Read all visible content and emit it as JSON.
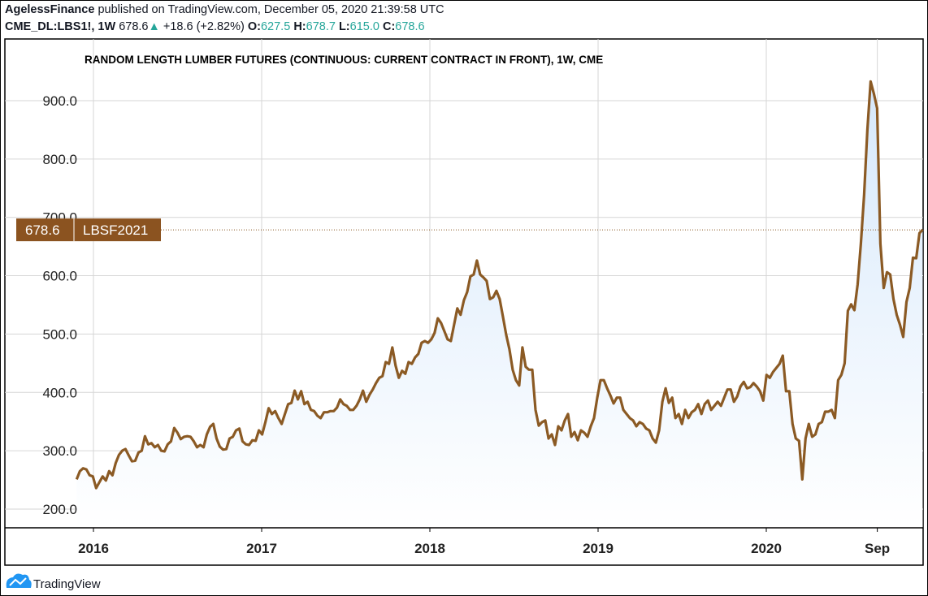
{
  "header": {
    "author": "AgelessFinance",
    "published": "published on TradingView.com, December 05, 2020 21:39:58 UTC",
    "symbol": "CME_DL:LBS1!, 1W",
    "last": "678.6",
    "change": "+18.6 (+2.82%)",
    "o_label": "O:",
    "o": "627.5",
    "h_label": "H:",
    "h": "678.7",
    "l_label": "L:",
    "l": "615.0",
    "c_label": "C:",
    "c": "678.6"
  },
  "footer": {
    "brand": "TradingView"
  },
  "colors": {
    "line": "#8b5a24",
    "fill_top": "#d6e8fb",
    "up": "#26a69a",
    "label_bg": "#8b5320"
  },
  "chart_data": {
    "type": "area",
    "title": "RANDOM LENGTH LUMBER FUTURES (CONTINUOUS: CURRENT CONTRACT IN FRONT), 1W, CME",
    "xlabel": "",
    "ylabel": "",
    "ylim": [
      200,
      930
    ],
    "xlim": [
      2015.9,
      2020.95
    ],
    "x_start": 2015.9,
    "x_end": 2020.93,
    "yticks": [
      "200.0",
      "300.0",
      "400.0",
      "500.0",
      "600.0",
      "700.0",
      "800.0",
      "900.0"
    ],
    "ytick_values": [
      200,
      300,
      400,
      500,
      600,
      700,
      800,
      900
    ],
    "xticks": [
      {
        "label": "2016",
        "x": 2016.0
      },
      {
        "label": "2017",
        "x": 2017.0
      },
      {
        "label": "2018",
        "x": 2018.0
      },
      {
        "label": "2019",
        "x": 2019.0
      },
      {
        "label": "2020",
        "x": 2020.0
      },
      {
        "label": "Sep",
        "x": 2020.66
      }
    ],
    "price_label": {
      "value": "678.6",
      "name": "LBSF2021",
      "y": 678.6
    },
    "grid": true,
    "values": [
      251,
      265,
      270,
      268,
      258,
      256,
      236,
      246,
      256,
      249,
      265,
      258,
      279,
      293,
      300,
      303,
      292,
      282,
      283,
      297,
      300,
      325,
      311,
      313,
      306,
      310,
      300,
      299,
      311,
      316,
      339,
      331,
      320,
      324,
      325,
      324,
      316,
      306,
      310,
      306,
      328,
      341,
      346,
      321,
      307,
      302,
      303,
      321,
      324,
      335,
      338,
      316,
      311,
      310,
      318,
      317,
      335,
      328,
      349,
      373,
      363,
      368,
      356,
      346,
      363,
      380,
      382,
      403,
      388,
      402,
      380,
      384,
      370,
      368,
      360,
      356,
      366,
      366,
      368,
      368,
      374,
      388,
      380,
      377,
      370,
      370,
      377,
      388,
      403,
      384,
      396,
      405,
      416,
      425,
      428,
      452,
      449,
      477,
      446,
      425,
      437,
      432,
      452,
      449,
      460,
      466,
      485,
      488,
      485,
      491,
      502,
      527,
      519,
      505,
      491,
      488,
      516,
      544,
      533,
      558,
      572,
      599,
      602,
      626,
      602,
      597,
      591,
      560,
      563,
      574,
      560,
      530,
      499,
      474,
      439,
      421,
      412,
      477,
      444,
      439,
      439,
      370,
      343,
      349,
      352,
      321,
      328,
      310,
      342,
      335,
      352,
      363,
      324,
      332,
      318,
      335,
      331,
      324,
      342,
      356,
      391,
      421,
      421,
      407,
      395,
      381,
      391,
      391,
      370,
      363,
      356,
      352,
      342,
      349,
      346,
      338,
      335,
      321,
      314,
      335,
      384,
      407,
      382,
      391,
      356,
      363,
      346,
      370,
      356,
      366,
      370,
      380,
      363,
      380,
      386,
      370,
      377,
      384,
      377,
      391,
      405,
      405,
      384,
      393,
      410,
      418,
      407,
      409,
      416,
      410,
      402,
      386,
      430,
      425,
      435,
      442,
      449,
      463,
      402,
      402,
      346,
      321,
      317,
      251,
      321,
      346,
      324,
      328,
      346,
      349,
      367,
      367,
      370,
      356,
      421,
      430,
      450,
      540,
      551,
      541,
      585,
      655,
      739,
      850,
      933,
      912,
      887,
      655,
      579,
      606,
      602,
      560,
      533,
      516,
      495,
      555,
      579,
      631,
      630,
      673,
      679
    ]
  }
}
